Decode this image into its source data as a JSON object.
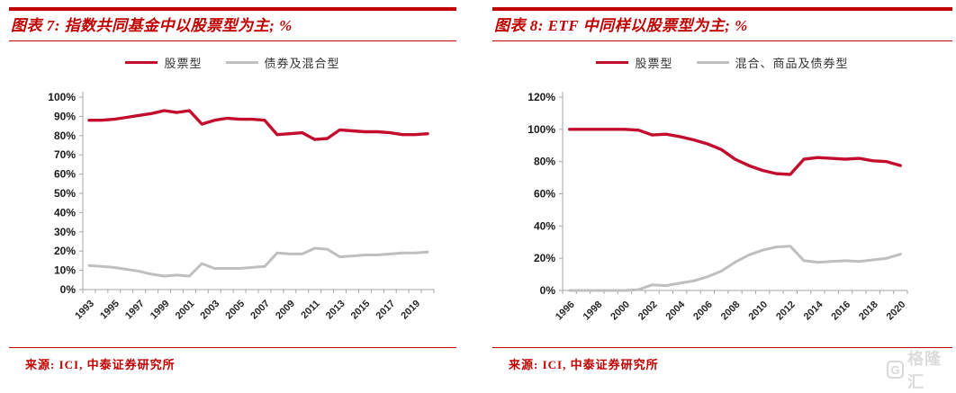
{
  "colors": {
    "header_red": "#C00000",
    "series_red": "#C30D2E",
    "series_gray": "#BFBFBF",
    "axis_gray": "#A6A6A6"
  },
  "source_note": "来源: ICI, 中泰证券研究所",
  "watermark": {
    "logo_letter": "G",
    "brand_text": "格隆汇"
  },
  "chart_data": [
    {
      "type": "line",
      "title": "图表 7: 指数共同基金中以股票型为主; %",
      "x": [
        1993,
        1994,
        1995,
        1996,
        1997,
        1998,
        1999,
        2000,
        2001,
        2002,
        2003,
        2004,
        2005,
        2006,
        2007,
        2008,
        2009,
        2010,
        2011,
        2012,
        2013,
        2014,
        2015,
        2016,
        2017,
        2018,
        2019,
        2020
      ],
      "xtick_labels": [
        "1993",
        "1995",
        "1997",
        "1999",
        "2001",
        "2003",
        "2005",
        "2007",
        "2009",
        "2011",
        "2013",
        "2015",
        "2017",
        "2019"
      ],
      "ylim": [
        0,
        100
      ],
      "ytick_step": 10,
      "grid": false,
      "legend_position": "top",
      "series": [
        {
          "name": "股票型",
          "color": "#C30D2E",
          "values": [
            88,
            88,
            88.5,
            89.5,
            90.5,
            91.5,
            93,
            92,
            93,
            86,
            88,
            89,
            88.5,
            88.5,
            88,
            80.5,
            81,
            81.5,
            78,
            78.5,
            83,
            82.5,
            82,
            82,
            81.5,
            80.5,
            80.5,
            81
          ]
        },
        {
          "name": "债券及混合型",
          "color": "#BFBFBF",
          "values": [
            12.5,
            12,
            11.5,
            10.5,
            9.5,
            8,
            7,
            7.5,
            7,
            13.5,
            11,
            11,
            11,
            11.5,
            12,
            19,
            18.5,
            18.5,
            21.5,
            21,
            17,
            17.5,
            18,
            18,
            18.5,
            19,
            19,
            19.5
          ]
        }
      ]
    },
    {
      "type": "line",
      "title": "图表 8: ETF 中同样以股票型为主; %",
      "x": [
        1996,
        1997,
        1998,
        1999,
        2000,
        2001,
        2002,
        2003,
        2004,
        2005,
        2006,
        2007,
        2008,
        2009,
        2010,
        2011,
        2012,
        2013,
        2014,
        2015,
        2016,
        2017,
        2018,
        2019,
        2020
      ],
      "xtick_labels": [
        "1996",
        "1998",
        "2000",
        "2002",
        "2004",
        "2006",
        "2008",
        "2010",
        "2012",
        "2014",
        "2016",
        "2018",
        "2020"
      ],
      "ylim": [
        0,
        120
      ],
      "ytick_step": 20,
      "grid": false,
      "legend_position": "top",
      "series": [
        {
          "name": "股票型",
          "color": "#C30D2E",
          "values": [
            100,
            100,
            100,
            100,
            100,
            99.5,
            96.5,
            97,
            95.5,
            93.5,
            91,
            87.5,
            81.5,
            77.5,
            74.5,
            72.5,
            72,
            81.5,
            82.5,
            82,
            81.5,
            82,
            80.5,
            80,
            77.5
          ]
        },
        {
          "name": "混合、商品及债券型",
          "color": "#BFBFBF",
          "values": [
            0,
            0,
            0,
            0,
            0,
            0.5,
            3.5,
            3,
            4.5,
            6,
            8.5,
            12,
            17.5,
            22,
            25,
            27,
            27.5,
            18.5,
            17.5,
            18,
            18.5,
            18,
            19,
            20,
            22.5
          ]
        }
      ]
    }
  ]
}
